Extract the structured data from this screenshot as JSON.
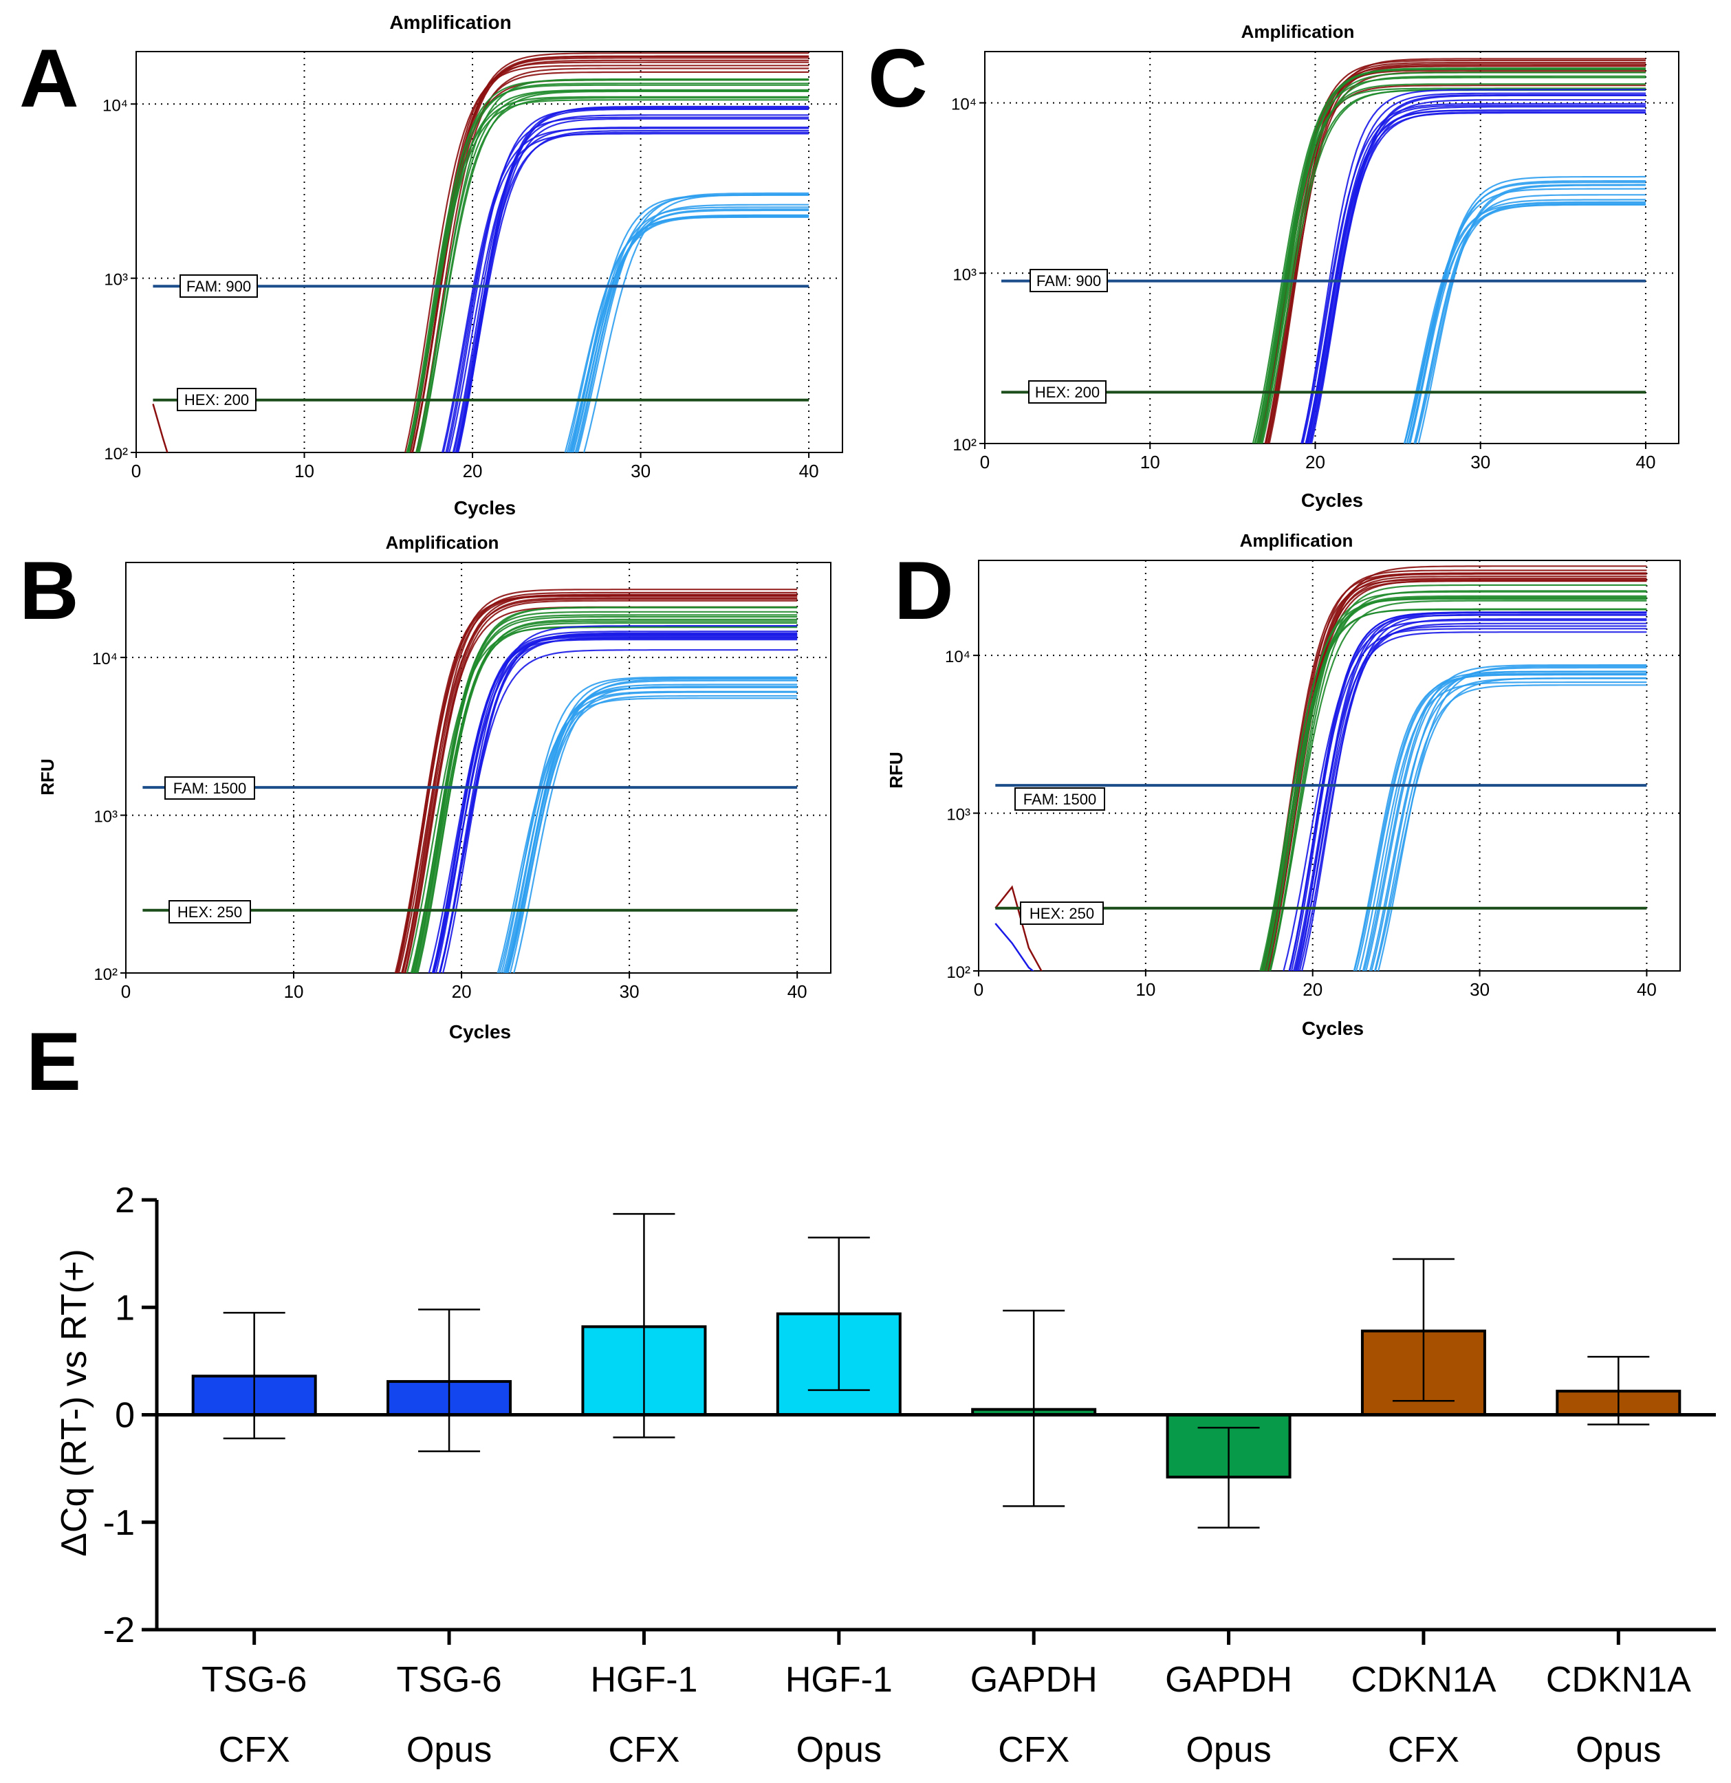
{
  "colors": {
    "gapdh": "#1e8a2a",
    "cdkn1a": "#8c0f0f",
    "tsg6": "#1a1ae8",
    "hgf1": "#2e9ef0",
    "fam_line": "#1d4e8c",
    "hex_line": "#1a4d1a",
    "bar_tsg6": "#1446f0",
    "bar_hgf1": "#00d6f5",
    "bar_gapdh": "#079a48",
    "bar_cdkn1a": "#a65000"
  },
  "panels": [
    {
      "letter": "A",
      "title": "Amplification",
      "xlabel": "Cycles",
      "ylabel": "",
      "fam_label": "FAM: 900",
      "hex_label": "HEX: 200"
    },
    {
      "letter": "C",
      "title": "Amplification",
      "xlabel": "Cycles",
      "ylabel": "",
      "fam_label": "FAM: 900",
      "hex_label": "HEX: 200"
    },
    {
      "letter": "B",
      "title": "Amplification",
      "xlabel": "Cycles",
      "ylabel": "RFU",
      "fam_label": "FAM: 1500",
      "hex_label": "HEX: 250"
    },
    {
      "letter": "D",
      "title": "Amplification",
      "xlabel": "Cycles",
      "ylabel": "RFU",
      "fam_label": "FAM: 1500",
      "hex_label": "HEX: 250"
    }
  ],
  "bar_panel": {
    "letter": "E"
  },
  "chart_data": [
    {
      "type": "line",
      "panel": "A",
      "title": "Amplification",
      "xlabel": "Cycles",
      "ylabel": "",
      "xlim": [
        0,
        42
      ],
      "ylim": [
        100,
        20000
      ],
      "yscale": "log",
      "xticks": [
        "0",
        "10",
        "20",
        "30",
        "40"
      ],
      "yticks": [
        "10²",
        "10³",
        "10⁴"
      ],
      "thresholds": [
        {
          "name": "FAM",
          "value": 900,
          "label": "FAM: 900"
        },
        {
          "name": "HEX",
          "value": 200,
          "label": "HEX: 200"
        }
      ],
      "series": [
        {
          "name": "CDKN1A",
          "color": "cdkn1a",
          "cq": 18.0,
          "plateau": 17000,
          "count": 10,
          "spread": 0.35
        },
        {
          "name": "GAPDH",
          "color": "gapdh",
          "cq": 18.2,
          "plateau": 13000,
          "count": 10,
          "spread": 0.4
        },
        {
          "name": "TSG-6",
          "color": "tsg6",
          "cq": 20.5,
          "plateau": 8500,
          "count": 12,
          "spread": 0.45
        },
        {
          "name": "HGF-1",
          "color": "hgf1",
          "cq": 28.4,
          "plateau": 2800,
          "count": 12,
          "spread": 0.6
        }
      ],
      "noise": [
        {
          "color": "cdkn1a",
          "points": [
            [
              1,
              190
            ],
            [
              1.6,
              120
            ],
            [
              2.0,
              90
            ]
          ]
        }
      ]
    },
    {
      "type": "line",
      "panel": "C",
      "title": "Amplification",
      "xlabel": "Cycles",
      "ylabel": "",
      "xlim": [
        0,
        42
      ],
      "ylim": [
        100,
        20000
      ],
      "yscale": "log",
      "xticks": [
        "0",
        "10",
        "20",
        "30",
        "40"
      ],
      "yticks": [
        "10²",
        "10³",
        "10⁴"
      ],
      "thresholds": [
        {
          "name": "FAM",
          "value": 900,
          "label": "FAM: 900"
        },
        {
          "name": "HEX",
          "value": 200,
          "label": "HEX: 200"
        }
      ],
      "series": [
        {
          "name": "CDKN1A",
          "color": "cdkn1a",
          "cq": 18.5,
          "plateau": 16000,
          "count": 10,
          "spread": 0.35
        },
        {
          "name": "GAPDH",
          "color": "gapdh",
          "cq": 18.3,
          "plateau": 14000,
          "count": 10,
          "spread": 0.35
        },
        {
          "name": "TSG-6",
          "color": "tsg6",
          "cq": 21.2,
          "plateau": 10500,
          "count": 12,
          "spread": 0.35
        },
        {
          "name": "HGF-1",
          "color": "hgf1",
          "cq": 28.1,
          "plateau": 3200,
          "count": 12,
          "spread": 0.45
        }
      ],
      "noise": []
    },
    {
      "type": "line",
      "panel": "B",
      "title": "Amplification",
      "xlabel": "Cycles",
      "ylabel": "RFU",
      "xlim": [
        0,
        42
      ],
      "ylim": [
        100,
        40000
      ],
      "yscale": "log",
      "xticks": [
        "0",
        "10",
        "20",
        "30",
        "40"
      ],
      "yticks": [
        "10²",
        "10³",
        "10⁴"
      ],
      "thresholds": [
        {
          "name": "FAM",
          "value": 1500,
          "label": "FAM: 1500"
        },
        {
          "name": "HEX",
          "value": 250,
          "label": "HEX: 250"
        }
      ],
      "series": [
        {
          "name": "CDKN1A",
          "color": "cdkn1a",
          "cq": 18.3,
          "plateau": 25000,
          "count": 10,
          "spread": 0.3
        },
        {
          "name": "GAPDH",
          "color": "gapdh",
          "cq": 19.1,
          "plateau": 19000,
          "count": 10,
          "spread": 0.3
        },
        {
          "name": "TSG-6",
          "color": "tsg6",
          "cq": 20.6,
          "plateau": 14000,
          "count": 12,
          "spread": 0.35
        },
        {
          "name": "HGF-1",
          "color": "hgf1",
          "cq": 25.0,
          "plateau": 6500,
          "count": 12,
          "spread": 0.45
        }
      ],
      "noise": []
    },
    {
      "type": "line",
      "panel": "D",
      "title": "Amplification",
      "xlabel": "Cycles",
      "ylabel": "RFU",
      "xlim": [
        0,
        42
      ],
      "ylim": [
        100,
        40000
      ],
      "yscale": "log",
      "xticks": [
        "0",
        "10",
        "20",
        "30",
        "40"
      ],
      "yticks": [
        "10²",
        "10³",
        "10⁴"
      ],
      "thresholds": [
        {
          "name": "FAM",
          "value": 1500,
          "label": "FAM: 1500"
        },
        {
          "name": "HEX",
          "value": 250,
          "label": "HEX: 250"
        }
      ],
      "series": [
        {
          "name": "CDKN1A",
          "color": "cdkn1a",
          "cq": 19.0,
          "plateau": 32000,
          "count": 10,
          "spread": 0.3
        },
        {
          "name": "GAPDH",
          "color": "gapdh",
          "cq": 19.2,
          "plateau": 25000,
          "count": 10,
          "spread": 0.35
        },
        {
          "name": "TSG-6",
          "color": "tsg6",
          "cq": 21.0,
          "plateau": 17000,
          "count": 12,
          "spread": 0.6
        },
        {
          "name": "HGF-1",
          "color": "hgf1",
          "cq": 25.5,
          "plateau": 7500,
          "count": 12,
          "spread": 0.8
        }
      ],
      "noise": [
        {
          "color": "cdkn1a",
          "points": [
            [
              1,
              250
            ],
            [
              2,
              340
            ],
            [
              3,
              140
            ],
            [
              4,
              90
            ]
          ]
        },
        {
          "color": "tsg6",
          "points": [
            [
              1,
              200
            ],
            [
              2,
              150
            ],
            [
              3,
              105
            ],
            [
              3.5,
              95
            ]
          ]
        }
      ]
    },
    {
      "type": "bar",
      "panel": "E",
      "title": "",
      "xlabel": "",
      "ylabel": "ΔCq (RT-) vs RT(+)",
      "ylim": [
        -2,
        2
      ],
      "yticks": [
        "-2",
        "-1",
        "0",
        "1",
        "2"
      ],
      "ytick_values": [
        -2,
        -1,
        0,
        1,
        2
      ],
      "categories": [
        [
          "TSG-6",
          "CFX"
        ],
        [
          "TSG-6",
          "Opus"
        ],
        [
          "HGF-1",
          "CFX"
        ],
        [
          "HGF-1",
          "Opus"
        ],
        [
          "GAPDH",
          "CFX"
        ],
        [
          "GAPDH",
          "Opus"
        ],
        [
          "CDKN1A",
          "CFX"
        ],
        [
          "CDKN1A",
          "Opus"
        ]
      ],
      "values": [
        0.36,
        0.31,
        0.82,
        0.94,
        0.05,
        -0.58,
        0.78,
        0.22
      ],
      "err_low": [
        -0.22,
        -0.34,
        -0.21,
        0.23,
        -0.85,
        -1.05,
        0.13,
        -0.09
      ],
      "err_high": [
        0.95,
        0.98,
        1.87,
        1.65,
        0.97,
        -0.12,
        1.45,
        0.54
      ],
      "bar_colors": [
        "bar_tsg6",
        "bar_tsg6",
        "bar_hgf1",
        "bar_hgf1",
        "bar_gapdh",
        "bar_gapdh",
        "bar_cdkn1a",
        "bar_cdkn1a"
      ]
    }
  ]
}
